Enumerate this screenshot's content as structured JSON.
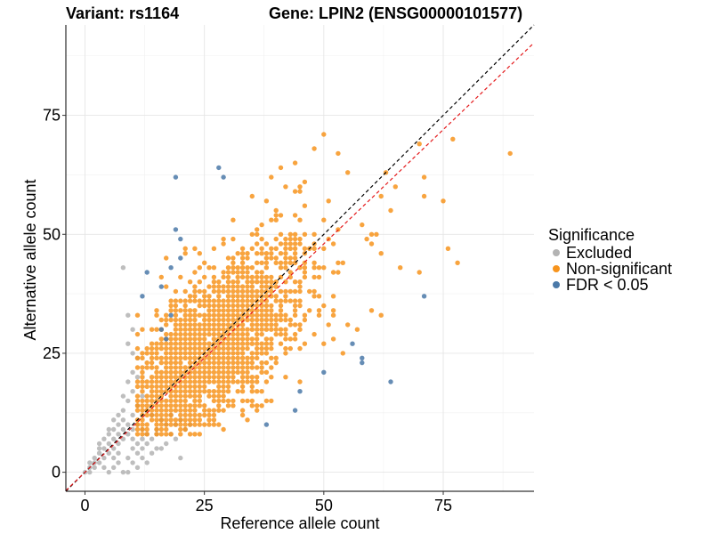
{
  "chart_data": {
    "type": "scatter",
    "title_left": "Variant: rs1164",
    "title_right": "Gene: LPIN2 (ENSG00000101577)",
    "xlabel": "Reference allele count",
    "ylabel": "Alternative allele count",
    "xlim": [
      -4,
      94
    ],
    "ylim": [
      -4,
      94
    ],
    "x_ticks": [
      0,
      25,
      50,
      75
    ],
    "y_ticks": [
      0,
      25,
      50,
      75
    ],
    "legend": {
      "title": "Significance",
      "placement": "right",
      "entries": [
        {
          "label": "Excluded",
          "color": "#b3b3b3"
        },
        {
          "label": "Non-significant",
          "color": "#f7941d"
        },
        {
          "label": "FDR < 0.05",
          "color": "#4b79a8"
        }
      ]
    },
    "reference_lines": [
      {
        "name": "identity",
        "slope": 1.0,
        "intercept": 0,
        "color": "#000000",
        "style": "dashed"
      },
      {
        "name": "fit",
        "slope": 0.96,
        "intercept": 0,
        "color": "#e41a1c",
        "style": "dashed"
      }
    ],
    "series": [
      {
        "name": "Excluded",
        "color": "#b3b3b3",
        "points": [
          [
            0,
            0
          ],
          [
            1,
            1
          ],
          [
            1,
            2
          ],
          [
            2,
            1
          ],
          [
            2,
            3
          ],
          [
            3,
            2
          ],
          [
            3,
            4
          ],
          [
            4,
            3
          ],
          [
            4,
            5
          ],
          [
            5,
            4
          ],
          [
            5,
            6
          ],
          [
            6,
            5
          ],
          [
            6,
            7
          ],
          [
            7,
            6
          ],
          [
            7,
            8
          ],
          [
            8,
            7
          ],
          [
            9,
            8
          ],
          [
            8,
            9
          ],
          [
            10,
            9
          ],
          [
            9,
            10
          ],
          [
            3,
            6
          ],
          [
            5,
            9
          ],
          [
            6,
            11
          ],
          [
            8,
            13
          ],
          [
            9,
            15
          ],
          [
            10,
            12
          ],
          [
            11,
            14
          ],
          [
            12,
            16
          ],
          [
            13,
            13
          ],
          [
            14,
            12
          ],
          [
            11,
            10
          ],
          [
            12,
            9
          ],
          [
            10,
            7
          ],
          [
            13,
            8
          ],
          [
            15,
            9
          ],
          [
            16,
            11
          ],
          [
            17,
            10
          ],
          [
            18,
            12
          ],
          [
            19,
            10
          ],
          [
            20,
            11
          ],
          [
            21,
            9
          ],
          [
            22,
            10
          ],
          [
            20,
            3
          ],
          [
            6,
            1
          ],
          [
            7,
            2
          ],
          [
            9,
            3
          ],
          [
            11,
            4
          ],
          [
            12,
            5
          ],
          [
            8,
            0
          ],
          [
            9,
            0
          ],
          [
            5,
            0
          ],
          [
            4,
            1
          ],
          [
            6,
            3
          ],
          [
            7,
            4
          ],
          [
            10,
            5
          ],
          [
            11,
            6
          ],
          [
            12,
            7
          ],
          [
            13,
            6
          ],
          [
            14,
            7
          ],
          [
            15,
            8
          ],
          [
            8,
            43
          ],
          [
            9,
            33
          ],
          [
            10,
            30
          ],
          [
            9,
            27
          ],
          [
            10,
            25
          ],
          [
            11,
            24
          ],
          [
            10,
            21
          ],
          [
            11,
            20
          ],
          [
            9,
            19
          ],
          [
            10,
            17
          ],
          [
            8,
            16
          ],
          [
            7,
            12
          ],
          [
            8,
            11
          ],
          [
            7,
            10
          ],
          [
            6,
            9
          ],
          [
            5,
            8
          ],
          [
            4,
            7
          ],
          [
            3,
            5
          ],
          [
            2,
            2
          ],
          [
            1,
            0
          ],
          [
            16,
            5
          ],
          [
            17,
            6
          ],
          [
            18,
            8
          ],
          [
            19,
            7
          ],
          [
            14,
            4
          ],
          [
            15,
            5
          ],
          [
            13,
            2
          ],
          [
            11,
            1
          ],
          [
            10,
            2
          ],
          [
            12,
            3
          ]
        ]
      },
      {
        "name": "FDR < 0.05",
        "color": "#4b79a8",
        "points": [
          [
            19,
            62
          ],
          [
            28,
            64
          ],
          [
            29,
            62
          ],
          [
            19,
            51
          ],
          [
            20,
            49
          ],
          [
            13,
            42
          ],
          [
            12,
            37
          ],
          [
            16,
            39
          ],
          [
            18,
            43
          ],
          [
            20,
            45
          ],
          [
            71,
            37
          ],
          [
            56,
            27
          ],
          [
            58,
            23
          ],
          [
            58,
            24
          ],
          [
            64,
            19
          ],
          [
            50,
            21
          ],
          [
            45,
            17
          ],
          [
            44,
            13
          ],
          [
            38,
            10
          ],
          [
            17,
            28
          ],
          [
            16,
            30
          ],
          [
            18,
            33
          ]
        ]
      },
      {
        "name": "Non-significant",
        "color": "#f7941d",
        "points": []
      }
    ]
  }
}
